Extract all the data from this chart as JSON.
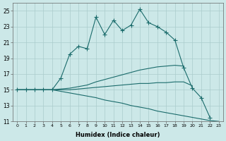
{
  "xlabel": "Humidex (Indice chaleur)",
  "xlim": [
    -0.5,
    23.5
  ],
  "ylim": [
    11,
    26
  ],
  "xticks": [
    0,
    1,
    2,
    3,
    4,
    5,
    6,
    7,
    8,
    9,
    10,
    11,
    12,
    13,
    14,
    15,
    16,
    17,
    18,
    19,
    20,
    21,
    22,
    23
  ],
  "yticks": [
    11,
    13,
    15,
    17,
    19,
    21,
    23,
    25
  ],
  "bg_color": "#cce8e8",
  "grid_color": "#aacccc",
  "line_color": "#1a6b6b",
  "line1_y": [
    15,
    15,
    15,
    15,
    15,
    16.5,
    19.5,
    20.5,
    20.2,
    24.2,
    22.0,
    23.8,
    22.5,
    23.2,
    25.2,
    23.5,
    23.0,
    22.3,
    21.3,
    17.8,
    15.2,
    14.0,
    11.5,
    null
  ],
  "line2_y": [
    15,
    15,
    15,
    15,
    15,
    15.1,
    15.2,
    15.4,
    15.6,
    16.0,
    16.3,
    16.6,
    16.9,
    17.2,
    17.5,
    17.7,
    17.9,
    18.0,
    18.1,
    18.0,
    null,
    null,
    null,
    null
  ],
  "line3_y": [
    15,
    15,
    15,
    15,
    15,
    15.0,
    15.0,
    15.1,
    15.2,
    15.3,
    15.4,
    15.5,
    15.6,
    15.7,
    15.8,
    15.8,
    15.9,
    15.9,
    16.0,
    16.0,
    15.5,
    null,
    null,
    null
  ],
  "line4_y": [
    15,
    15,
    15,
    15,
    15,
    14.8,
    14.6,
    14.4,
    14.2,
    14.0,
    13.7,
    13.5,
    13.3,
    13.0,
    12.8,
    12.6,
    12.3,
    12.1,
    11.9,
    11.7,
    11.5,
    11.3,
    11.1,
    11.0
  ]
}
